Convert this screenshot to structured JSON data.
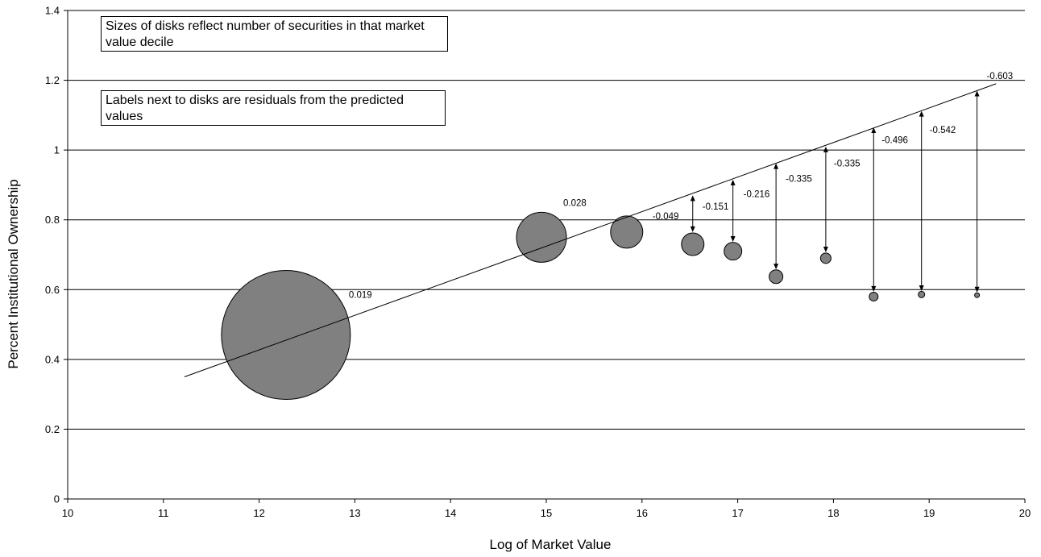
{
  "chart_data": {
    "type": "scatter",
    "xlabel": "Log of Market Value",
    "ylabel": "Percent Institutional Ownership",
    "xlim": [
      10,
      20
    ],
    "ylim": [
      0,
      1.4
    ],
    "x_ticks": [
      10,
      11,
      12,
      13,
      14,
      15,
      16,
      17,
      18,
      19,
      20
    ],
    "y_ticks": [
      0,
      0.2,
      0.4,
      0.6,
      0.8,
      1,
      1.2,
      1.4
    ],
    "y_tick_labels": [
      "0",
      "0.2",
      "0.4",
      "0.6",
      "0.8",
      "1",
      "1.2",
      "1.4"
    ],
    "grid": "horizontal",
    "colors": {
      "disk": "#808080",
      "line": "#000000",
      "grid": "#000000"
    },
    "fit_line": {
      "x": [
        11.22,
        19.7
      ],
      "y": [
        0.35,
        1.19
      ]
    },
    "disks": [
      {
        "x": 12.28,
        "y": 0.47,
        "size": 80,
        "residual": "0.019"
      },
      {
        "x": 14.95,
        "y": 0.75,
        "size": 31,
        "residual": "0.028"
      },
      {
        "x": 15.84,
        "y": 0.765,
        "size": 20,
        "residual": "-0.049"
      },
      {
        "x": 16.53,
        "y": 0.73,
        "size": 14,
        "residual": "-0.151"
      },
      {
        "x": 16.95,
        "y": 0.71,
        "size": 11,
        "residual": "-0.216"
      },
      {
        "x": 17.4,
        "y": 0.637,
        "size": 8.5,
        "residual": "-0.335"
      },
      {
        "x": 17.92,
        "y": 0.69,
        "size": 6.5,
        "residual": "-0.335"
      },
      {
        "x": 18.42,
        "y": 0.58,
        "size": 5.5,
        "residual": "-0.496"
      },
      {
        "x": 18.92,
        "y": 0.586,
        "size": 4,
        "residual": "-0.542"
      },
      {
        "x": 19.5,
        "y": 0.584,
        "size": 3,
        "residual": "-0.603"
      }
    ],
    "residual_arrows": [
      {
        "x": 16.53,
        "y_line": 0.87,
        "y_disk": 0.765
      },
      {
        "x": 16.95,
        "y_line": 0.915,
        "y_disk": 0.737
      },
      {
        "x": 17.4,
        "y_line": 0.962,
        "y_disk": 0.658
      },
      {
        "x": 17.92,
        "y_line": 1.01,
        "y_disk": 0.707
      },
      {
        "x": 18.42,
        "y_line": 1.065,
        "y_disk": 0.594
      },
      {
        "x": 18.92,
        "y_line": 1.112,
        "y_disk": 0.596
      },
      {
        "x": 19.5,
        "y_line": 1.17,
        "y_disk": 0.592
      }
    ],
    "annotations": [
      "Sizes of disks reflect number of securities in that market value decile",
      "Labels next to disks are residuals from the predicted values"
    ]
  }
}
